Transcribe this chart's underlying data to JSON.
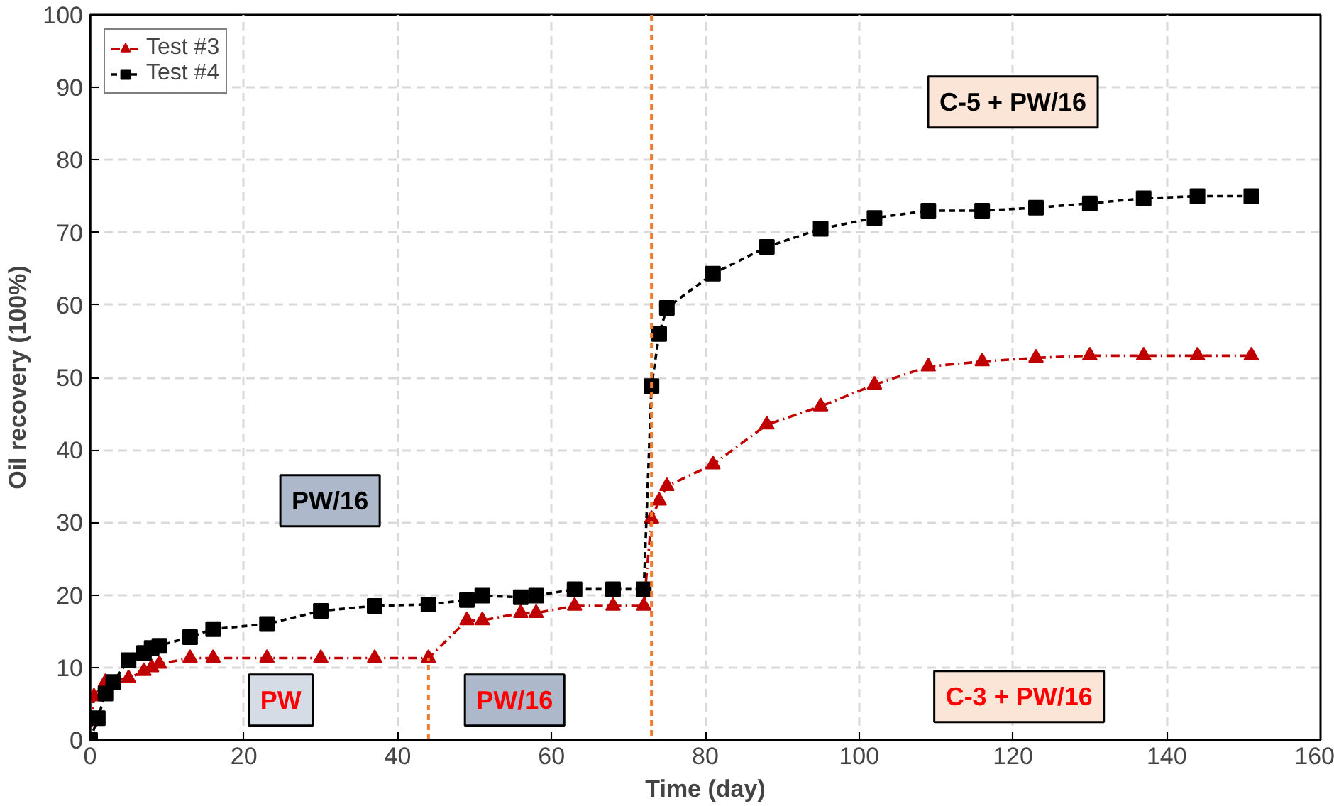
{
  "chart_data": {
    "type": "line",
    "xlabel": "Time (day)",
    "ylabel": "Oil recovery (100%)",
    "xlim": [
      0,
      160
    ],
    "xticks": [
      0,
      20,
      40,
      60,
      80,
      100,
      120,
      140,
      160
    ],
    "ylim": [
      0,
      100
    ],
    "yticks": [
      0,
      10,
      20,
      30,
      40,
      50,
      60,
      70,
      80,
      90,
      100
    ],
    "grid": true,
    "legend": "top left",
    "series": [
      {
        "name": "Test #3",
        "color": "#c00000",
        "marker": "triangle",
        "line_style": "dashdot",
        "x": [
          0,
          0.5,
          2,
          5,
          7,
          8,
          9,
          13,
          16,
          23,
          30,
          37,
          44,
          49,
          51,
          56,
          58,
          63,
          68,
          72,
          73,
          74,
          75,
          81,
          88,
          95,
          102,
          109,
          116,
          123,
          130,
          137,
          144,
          151
        ],
        "values": [
          0,
          6,
          8,
          8.5,
          9.5,
          10,
          10.5,
          11.3,
          11.3,
          11.3,
          11.3,
          11.3,
          11.3,
          16.5,
          16.5,
          17.5,
          17.5,
          18.5,
          18.5,
          18.5,
          30.5,
          33,
          35,
          38,
          43.5,
          46,
          49,
          51.5,
          52.2,
          52.7,
          53,
          53,
          53,
          53
        ]
      },
      {
        "name": "Test #4",
        "color": "#000000",
        "marker": "square",
        "line_style": "dashed",
        "x": [
          0,
          1,
          2,
          3,
          5,
          7,
          8,
          9,
          13,
          16,
          23,
          30,
          37,
          44,
          49,
          51,
          56,
          58,
          63,
          68,
          72,
          73,
          74,
          75,
          81,
          88,
          95,
          102,
          109,
          116,
          123,
          130,
          137,
          144,
          151
        ],
        "values": [
          0,
          3,
          6.4,
          8,
          11,
          12,
          12.7,
          13,
          14.2,
          15.3,
          16,
          17.8,
          18.5,
          18.7,
          19.3,
          19.9,
          19.7,
          19.9,
          20.8,
          20.8,
          20.8,
          48.8,
          56,
          59.6,
          64.3,
          68,
          70.5,
          72,
          73,
          73,
          73.4,
          74,
          74.7,
          75,
          75
        ]
      }
    ],
    "ref_lines": [
      {
        "axis": "x",
        "value": 44,
        "color": "#ed7d31",
        "line_style": "dashed"
      },
      {
        "axis": "x",
        "value": 73,
        "color": "#ed7d31",
        "line_style": "dashed"
      }
    ],
    "annotations": [
      "PW/16",
      "PW",
      "PW/16",
      "C-3 + PW/16",
      "C-5 + PW/16"
    ]
  }
}
